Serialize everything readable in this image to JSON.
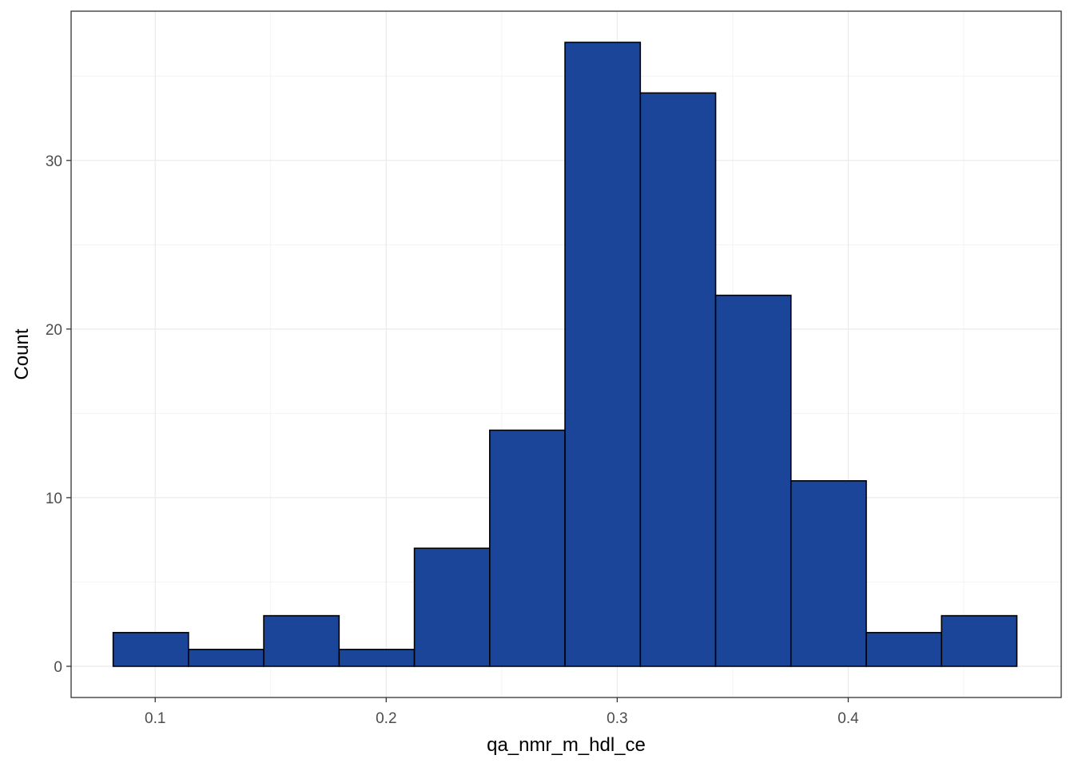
{
  "chart_data": {
    "type": "bar",
    "subtype": "histogram",
    "title": "",
    "xlabel": "qa_nmr_m_hdl_ce",
    "ylabel": "Count",
    "xlim": [
      0.0636,
      0.4922
    ],
    "ylim": [
      -1.85,
      38.85
    ],
    "x_ticks": [
      {
        "value": 0.1,
        "label": "0.1"
      },
      {
        "value": 0.2,
        "label": "0.2"
      },
      {
        "value": 0.3,
        "label": "0.3"
      },
      {
        "value": 0.4,
        "label": "0.4"
      }
    ],
    "y_ticks": [
      {
        "value": 0,
        "label": "0"
      },
      {
        "value": 10,
        "label": "10"
      },
      {
        "value": 20,
        "label": "20"
      },
      {
        "value": 30,
        "label": "30"
      }
    ],
    "x_minor_gridlines": [
      0.15,
      0.25,
      0.35,
      0.45
    ],
    "y_minor_gridlines": [
      5,
      15,
      25,
      35
    ],
    "grid": true,
    "bins": [
      {
        "start": 0.0818,
        "end": 0.1144,
        "count": 2
      },
      {
        "start": 0.1144,
        "end": 0.147,
        "count": 1
      },
      {
        "start": 0.147,
        "end": 0.1796,
        "count": 3
      },
      {
        "start": 0.1796,
        "end": 0.2122,
        "count": 1
      },
      {
        "start": 0.2122,
        "end": 0.2448,
        "count": 7
      },
      {
        "start": 0.2448,
        "end": 0.2774,
        "count": 14
      },
      {
        "start": 0.2774,
        "end": 0.31,
        "count": 37
      },
      {
        "start": 0.31,
        "end": 0.3426,
        "count": 34
      },
      {
        "start": 0.3426,
        "end": 0.3752,
        "count": 22
      },
      {
        "start": 0.3752,
        "end": 0.4078,
        "count": 11
      },
      {
        "start": 0.4078,
        "end": 0.4404,
        "count": 2
      },
      {
        "start": 0.4404,
        "end": 0.473,
        "count": 3
      }
    ],
    "colors": {
      "bar_fill": "#1A4599",
      "bar_outline": "#000000",
      "panel_border": "#333333",
      "grid_major": "#EBEBEB",
      "grid_minor": "#F3F3F3",
      "tick_text": "#4D4D4D",
      "title_text": "#000000"
    }
  }
}
